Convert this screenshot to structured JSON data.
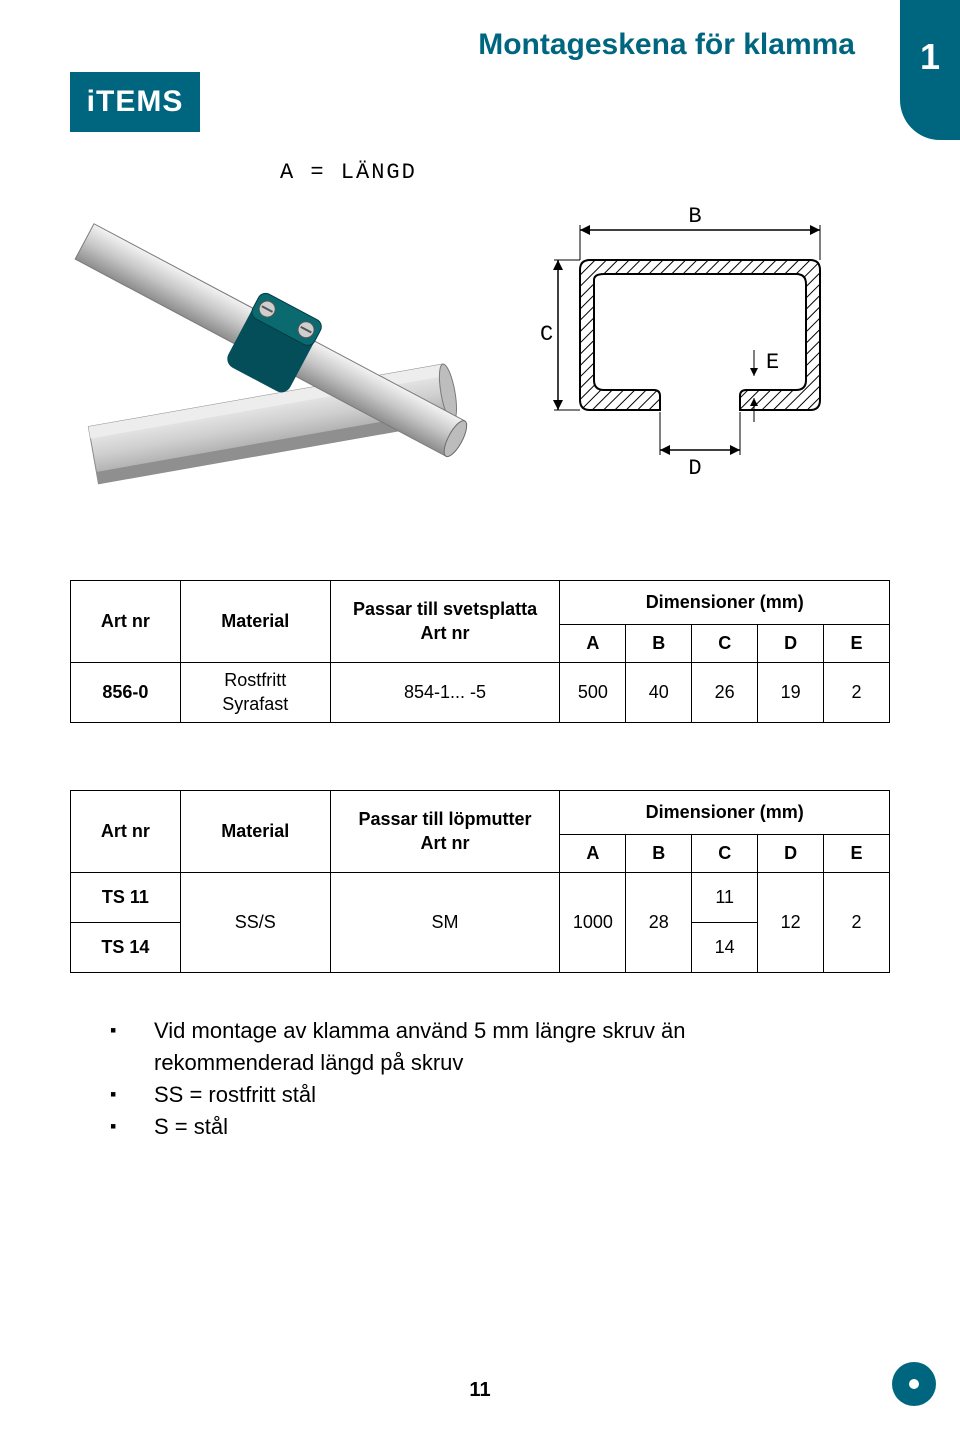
{
  "brand": {
    "logo_text": "iTEMS"
  },
  "header": {
    "title": "Montageskena för klamma",
    "tab_number": "1"
  },
  "diagram": {
    "length_label": "A = LÄNGD",
    "labels": {
      "B": "B",
      "C": "C",
      "D": "D",
      "E": "E"
    },
    "colors": {
      "profile_stroke": "#000000",
      "hatch": "#000000",
      "clamp_body": "#044e5a",
      "clamp_cap": "#0b6a6f",
      "pipe_light": "#e7e7e7",
      "pipe_mid": "#c6c6c6",
      "pipe_dark": "#9a9a9a"
    }
  },
  "table1": {
    "headers": {
      "art_nr": "Art nr",
      "material": "Material",
      "fits": "Passar till svetsplatta\nArt nr",
      "dim_group": "Dimensioner (mm)",
      "A": "A",
      "B": "B",
      "C": "C",
      "D": "D",
      "E": "E"
    },
    "row": {
      "art_nr": "856-0",
      "material": "Rostfritt\nSyrafast",
      "fits": "854-1... -5",
      "A": "500",
      "B": "40",
      "C": "26",
      "D": "19",
      "E": "2"
    }
  },
  "table2": {
    "headers": {
      "art_nr": "Art nr",
      "material": "Material",
      "fits": "Passar till löpmutter\nArt nr",
      "dim_group": "Dimensioner (mm)",
      "A": "A",
      "B": "B",
      "C": "C",
      "D": "D",
      "E": "E"
    },
    "rows": {
      "r1_art": "TS 11",
      "r2_art": "TS 14",
      "material": "SS/S",
      "fits": "SM",
      "A": "1000",
      "B": "28",
      "C1": "11",
      "C2": "14",
      "D": "12",
      "E": "2"
    }
  },
  "notes": {
    "n1": "Vid montage av klamma använd 5 mm längre skruv än rekommenderad längd på skruv",
    "n2": "SS = rostfritt stål",
    "n3": "S = stål"
  },
  "page_number": "11"
}
